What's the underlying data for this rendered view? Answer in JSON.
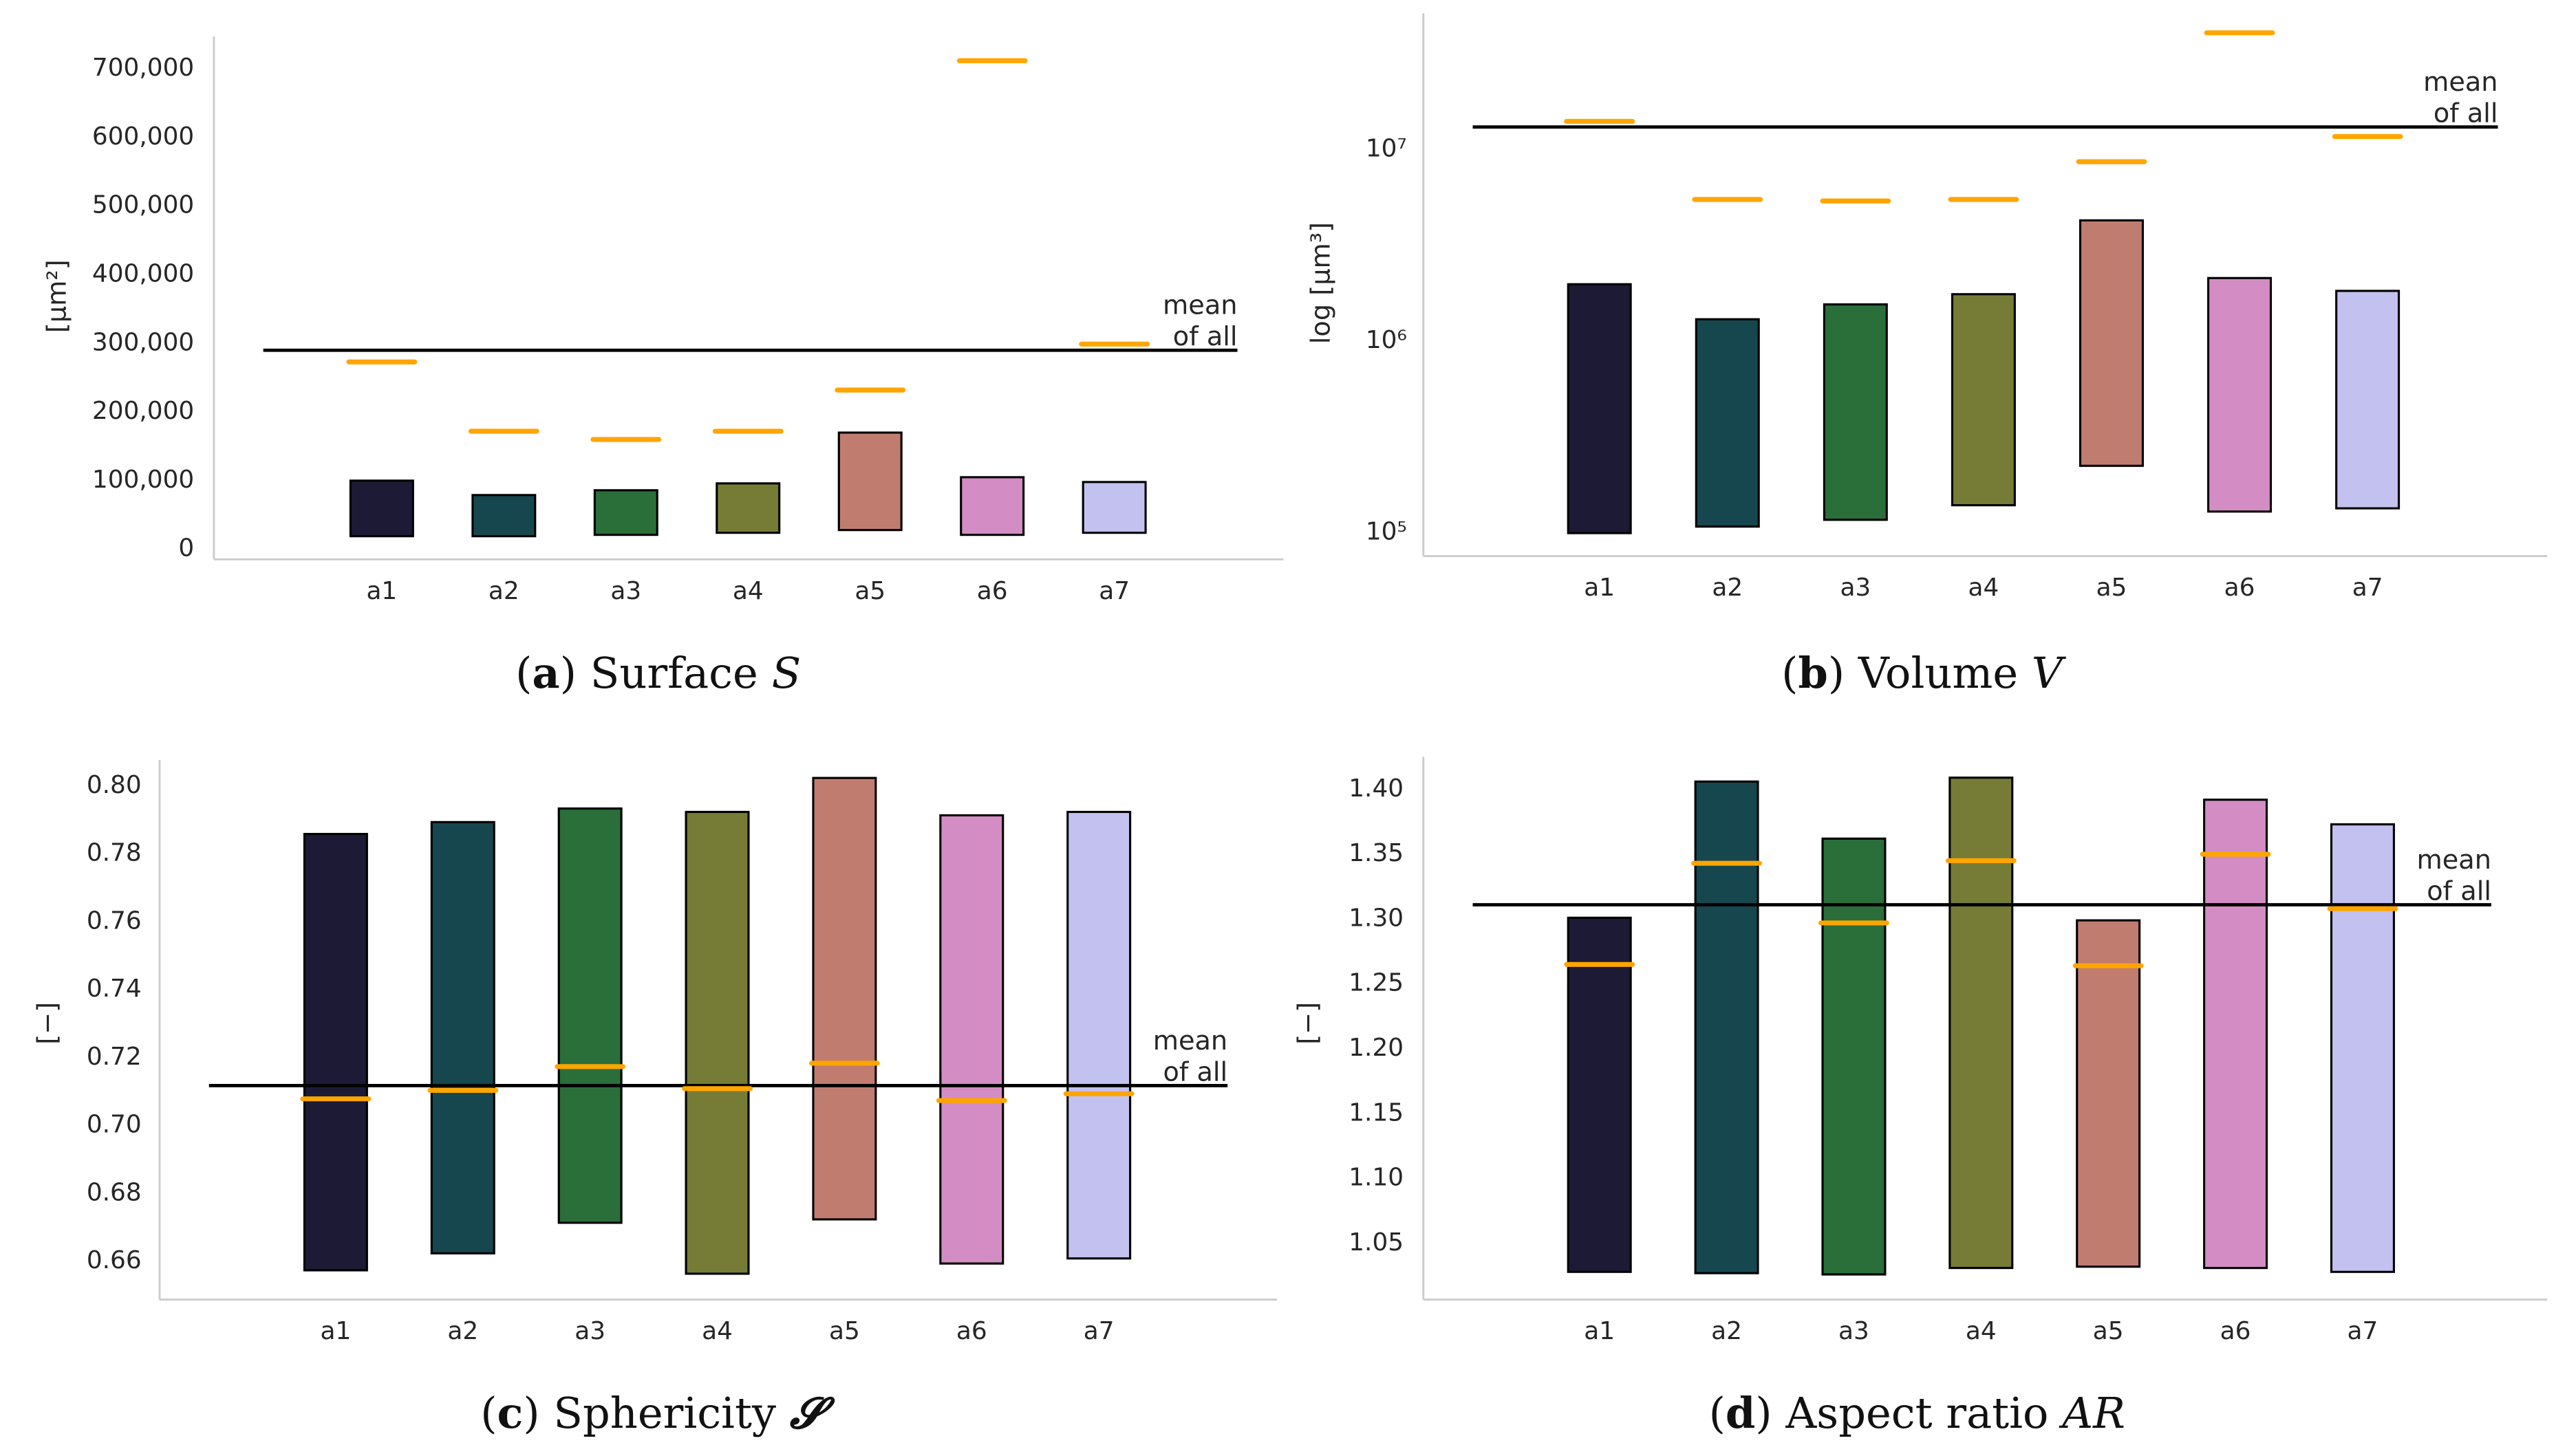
{
  "colors": {
    "bars": [
      "#1c1a35",
      "#16474f",
      "#2a6e3a",
      "#767c35",
      "#c17c70",
      "#d48dc4",
      "#c3c1f0"
    ],
    "mean_marker": "#ffa500",
    "mean_line": "#000000",
    "axis": "#cccccc"
  },
  "chart_data": [
    {
      "type": "bar",
      "id": "a",
      "title": "Surface",
      "caption": {
        "label": "a",
        "text": "Surface",
        "symbol": "S"
      },
      "ylabel": "[μm²]",
      "yscale": "linear",
      "ylim": [
        0,
        700000
      ],
      "yticks": [
        0,
        100000,
        200000,
        300000,
        400000,
        500000,
        600000,
        700000
      ],
      "ytick_labels": [
        "0",
        "100,000",
        "200,000",
        "300,000",
        "400,000",
        "500,000",
        "600,000",
        "700,000"
      ],
      "categories": [
        "a1",
        "a2",
        "a3",
        "a4",
        "a5",
        "a6",
        "a7"
      ],
      "bar_low": [
        17000,
        17000,
        19000,
        22000,
        26000,
        19000,
        22000
      ],
      "bar_high": [
        98000,
        77000,
        84000,
        94000,
        168000,
        103000,
        96000
      ],
      "means": [
        271000,
        170000,
        158000,
        170000,
        230000,
        710000,
        297000
      ],
      "overall_mean": 288000,
      "mean_label": [
        "mean",
        "of all"
      ]
    },
    {
      "type": "bar",
      "id": "b",
      "title": "Volume",
      "caption": {
        "label": "b",
        "text": "Volume",
        "symbol": "V"
      },
      "ylabel": "log [μm³]",
      "yscale": "log",
      "ylim": [
        100000,
        10000000
      ],
      "yticks": [
        100000,
        1000000,
        10000000
      ],
      "ytick_labels": [
        "10⁵",
        "10⁶",
        "10⁷"
      ],
      "categories": [
        "a1",
        "a2",
        "a3",
        "a4",
        "a5",
        "a6",
        "a7"
      ],
      "bar_low": [
        98000,
        106000,
        115000,
        137000,
        220000,
        127000,
        132000
      ],
      "bar_high": [
        1950000,
        1280000,
        1530000,
        1730000,
        4200000,
        2100000,
        1800000
      ],
      "means": [
        13800000,
        5400000,
        5300000,
        5400000,
        8500000,
        40000000,
        11500000
      ],
      "overall_mean": 12900000,
      "mean_label": [
        "mean",
        "of all"
      ]
    },
    {
      "type": "bar",
      "id": "c",
      "title": "Sphericity",
      "caption": {
        "label": "c",
        "text": "Sphericity",
        "symbol": "𝓢"
      },
      "ylabel": "[−]",
      "yscale": "linear",
      "ylim": [
        0.66,
        0.8
      ],
      "yticks": [
        0.66,
        0.68,
        0.7,
        0.72,
        0.74,
        0.76,
        0.78,
        0.8
      ],
      "ytick_labels": [
        "0.66",
        "0.68",
        "0.70",
        "0.72",
        "0.74",
        "0.76",
        "0.78",
        "0.80"
      ],
      "categories": [
        "a1",
        "a2",
        "a3",
        "a4",
        "a5",
        "a6",
        "a7"
      ],
      "bar_low": [
        0.657,
        0.662,
        0.671,
        0.656,
        0.672,
        0.659,
        0.6605
      ],
      "bar_high": [
        0.7855,
        0.789,
        0.793,
        0.792,
        0.802,
        0.791,
        0.792
      ],
      "means": [
        0.7075,
        0.71,
        0.717,
        0.7105,
        0.718,
        0.707,
        0.709
      ],
      "overall_mean": 0.7114,
      "mean_label": [
        "mean",
        "of all"
      ]
    },
    {
      "type": "bar",
      "id": "d",
      "title": "Aspect ratio",
      "caption": {
        "label": "d",
        "text": "Aspect ratio",
        "symbol": "AR"
      },
      "ylabel": "[−]",
      "yscale": "linear",
      "ylim": [
        1.05,
        1.4
      ],
      "yticks": [
        1.05,
        1.1,
        1.15,
        1.2,
        1.25,
        1.3,
        1.35,
        1.4
      ],
      "ytick_labels": [
        "1.05",
        "1.10",
        "1.15",
        "1.20",
        "1.25",
        "1.30",
        "1.35",
        "1.40"
      ],
      "categories": [
        "a1",
        "a2",
        "a3",
        "a4",
        "a5",
        "a6",
        "a7"
      ],
      "bar_low": [
        1.027,
        1.026,
        1.025,
        1.03,
        1.031,
        1.03,
        1.027
      ],
      "bar_high": [
        1.3,
        1.405,
        1.361,
        1.408,
        1.298,
        1.391,
        1.372
      ],
      "means": [
        1.264,
        1.342,
        1.296,
        1.344,
        1.263,
        1.349,
        1.307
      ],
      "overall_mean": 1.31,
      "mean_label": [
        "mean",
        "of all"
      ]
    }
  ]
}
